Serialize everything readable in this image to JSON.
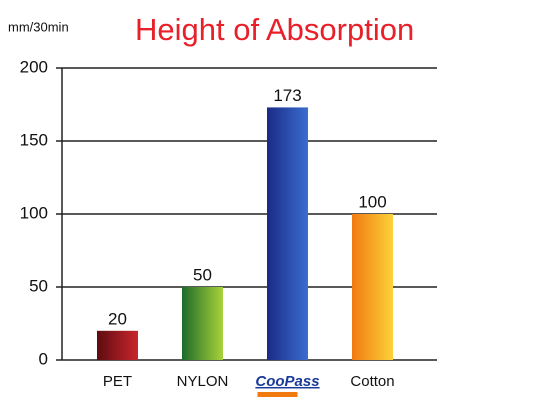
{
  "chart_data": {
    "type": "bar",
    "title": "Height of Absorption",
    "y_label": "mm/30min",
    "categories": [
      "PET",
      "NYLON",
      "CooPass",
      "Cotton"
    ],
    "values": [
      20,
      50,
      173,
      100
    ],
    "colors": [
      [
        "#5e0c10",
        "#c8262c"
      ],
      [
        "#1d6b2a",
        "#a8d23a"
      ],
      [
        "#1a2a86",
        "#3a6ed0"
      ],
      [
        "#f07a10",
        "#fcd23a"
      ]
    ],
    "ylim": [
      0,
      200
    ],
    "yticks": [
      0,
      50,
      100,
      150,
      200
    ],
    "grid": true
  }
}
